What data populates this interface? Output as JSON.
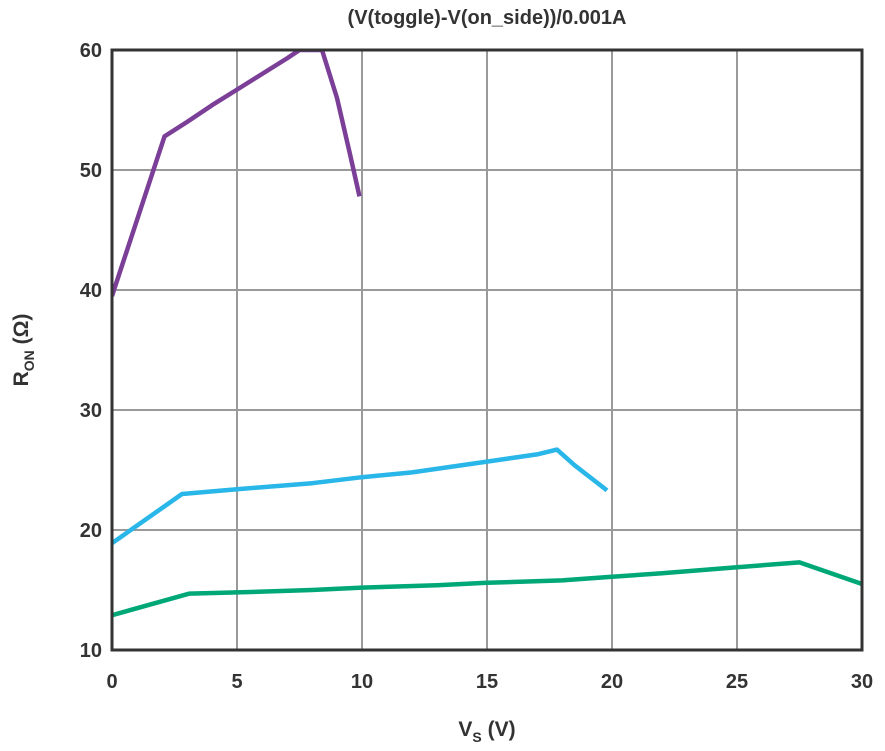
{
  "chart_data": {
    "type": "line",
    "title": "(V(toggle)-V(on_side))/0.001A",
    "xlabel": {
      "main": "V",
      "sub": "S",
      "unit": " (V)"
    },
    "ylabel": {
      "main": "R",
      "sub": "ON",
      "unit": " (Ω)"
    },
    "xlim": [
      0,
      30
    ],
    "ylim": [
      10,
      60
    ],
    "xticks": [
      "0",
      "5",
      "10",
      "15",
      "20",
      "25",
      "30"
    ],
    "yticks": [
      "10",
      "20",
      "30",
      "40",
      "50",
      "60"
    ],
    "grid": true,
    "colors": {
      "grid": "#9a9a9a",
      "frame": "#333333"
    },
    "series": [
      {
        "color": "#7b3f98",
        "x": [
          0,
          2.1,
          3.0,
          4.0,
          5.0,
          6.0,
          7.0,
          7.5,
          8.0,
          8.4,
          9.0,
          9.5,
          9.9
        ],
        "y": [
          39.5,
          52.8,
          54.0,
          55.4,
          56.7,
          58.0,
          59.3,
          60.0,
          60.0,
          60.0,
          56.0,
          51.5,
          47.8
        ]
      },
      {
        "color": "#29b6e8",
        "x": [
          0,
          2.8,
          5,
          8,
          10,
          12,
          15,
          17,
          17.8,
          18.5,
          19.8
        ],
        "y": [
          18.9,
          23.0,
          23.4,
          23.9,
          24.4,
          24.8,
          25.7,
          26.3,
          26.7,
          25.4,
          23.3
        ]
      },
      {
        "color": "#00a878",
        "x": [
          0,
          3.1,
          5,
          8,
          10,
          13,
          15,
          18,
          20,
          22,
          25,
          27.5,
          30
        ],
        "y": [
          12.9,
          14.7,
          14.8,
          15.0,
          15.2,
          15.4,
          15.6,
          15.8,
          16.1,
          16.4,
          16.9,
          17.3,
          15.5
        ]
      }
    ]
  }
}
